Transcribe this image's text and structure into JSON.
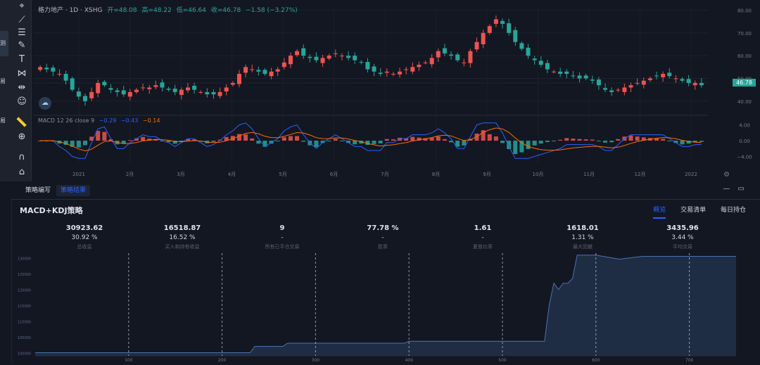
{
  "toolbar": {
    "icons": [
      "cursor-icon",
      "trend-line-icon",
      "fib-icon",
      "brush-icon",
      "text-icon",
      "pattern-icon",
      "measure-icon",
      "emoji-icon",
      "ruler-icon",
      "zoom-in-icon",
      "magnet-icon",
      "lock-icon"
    ],
    "side_tabs": [
      "测",
      "易",
      "易"
    ]
  },
  "symbol": {
    "name": "格力地产 · 1D · XSHG",
    "open": "开=48.08",
    "high": "高=48.22",
    "low": "低=46.64",
    "close": "收=46.78",
    "change": "−1.58 (−3.27%)",
    "last_price": "46.78"
  },
  "macd": {
    "label": "MACD 12 26 close 9",
    "v1": "−0.29",
    "v2": "−0.43",
    "v3": "−0.14"
  },
  "chart_data": [
    {
      "type": "candlestick",
      "title": "格力地产 · 1D · XSHG",
      "y_ticks": [
        "80.00",
        "70.00",
        "60.00",
        "50.00",
        "40.00"
      ],
      "ylim": [
        35,
        82
      ],
      "x_ticks": [
        "2021",
        "2月",
        "3月",
        "4月",
        "5月",
        "6月",
        "7月",
        "8月",
        "9月",
        "10月",
        "11月",
        "12月",
        "2022"
      ],
      "close_path": [
        55,
        54,
        53,
        52,
        49,
        45,
        42,
        40,
        44,
        48,
        47,
        45,
        44,
        43,
        44,
        45,
        46,
        46,
        47,
        46,
        45,
        44,
        45,
        46,
        45,
        44,
        43,
        43,
        44,
        46,
        48,
        52,
        55,
        54,
        53,
        52,
        53,
        54,
        57,
        60,
        62,
        60,
        59,
        58,
        59,
        60,
        61,
        60,
        59,
        58,
        57,
        54,
        53,
        52,
        53,
        52,
        53,
        54,
        55,
        56,
        57,
        59,
        62,
        61,
        60,
        58,
        57,
        62,
        66,
        70,
        73,
        76,
        74,
        70,
        66,
        63,
        60,
        58,
        56,
        54,
        53,
        52,
        52,
        51,
        50,
        50,
        49,
        47,
        45,
        44,
        45,
        46,
        47,
        48,
        49,
        50,
        51,
        52,
        51,
        50,
        49,
        48,
        48,
        47
      ]
    },
    {
      "type": "line",
      "title": "MACD 12 26 close 9",
      "y_ticks": [
        "4.00",
        "0.00",
        "−4.00"
      ],
      "ylim": [
        -5,
        5
      ]
    },
    {
      "type": "area",
      "title": "MACD+KDJ策略",
      "y_ticks": [
        "130000",
        "125000",
        "120000",
        "115000",
        "110000",
        "105000",
        "100000"
      ],
      "ylim": [
        99000,
        131500
      ],
      "x_ticks": [
        "100",
        "200",
        "300",
        "400",
        "500",
        "600",
        "700"
      ],
      "xlim": [
        0,
        750
      ],
      "x": [
        0,
        230,
        235,
        265,
        270,
        395,
        400,
        545,
        550,
        555,
        560,
        565,
        570,
        575,
        580,
        590,
        600,
        625,
        650,
        700,
        750
      ],
      "values": [
        100000,
        100000,
        102000,
        102000,
        103000,
        103000,
        103600,
        103600,
        115000,
        122000,
        120000,
        122000,
        122000,
        123500,
        130900,
        130900,
        130900,
        129600,
        130500,
        130500,
        130500
      ],
      "trade_markers_x": [
        100,
        200,
        300,
        400,
        500,
        600,
        700
      ]
    }
  ],
  "panel": {
    "tab_editor": "策略编写",
    "tab_results": "策略结果",
    "strategy_name": "MACD+KDJ策略",
    "report_tabs": [
      "概览",
      "交易清单",
      "每日持仓"
    ]
  },
  "stats": [
    {
      "value": "30923.62",
      "percent": "30.92 %",
      "label": "总收益"
    },
    {
      "value": "16518.87",
      "percent": "16.52 %",
      "label": "买入和持有收益"
    },
    {
      "value": "9",
      "percent": "-",
      "label": "所有已平仓交易"
    },
    {
      "value": "77.78 %",
      "percent": "-",
      "label": "胜率"
    },
    {
      "value": "1.61",
      "percent": "-",
      "label": "夏普比率"
    },
    {
      "value": "1618.01",
      "percent": "1.31 %",
      "label": "最大回撤"
    },
    {
      "value": "3435.96",
      "percent": "3.44 %",
      "label": "平均交易"
    }
  ],
  "colors": {
    "up": "#ef5350",
    "down": "#26a69a",
    "accent": "#2962ff",
    "background": "#131722"
  }
}
